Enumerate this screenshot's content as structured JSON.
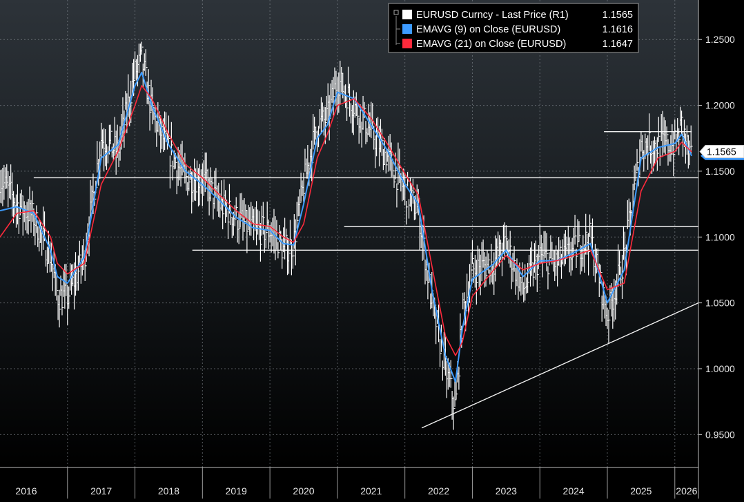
{
  "chart_data": {
    "type": "line",
    "title": "",
    "xlabel": "",
    "ylabel": "",
    "ylim": [
      0.925,
      1.28
    ],
    "xlim": [
      2016.0,
      2026.35
    ],
    "grid": true,
    "y_ticks": [
      0.95,
      1.0,
      1.05,
      1.1,
      1.15,
      1.2,
      1.25
    ],
    "y_tick_labels": [
      "0.9500",
      "1.0000",
      "1.0500",
      "1.1000",
      "1.1500",
      "1.2000",
      "1.2500"
    ],
    "x_year_labels": [
      "2016",
      "2017",
      "2018",
      "2019",
      "2020",
      "2021",
      "2022",
      "2023",
      "2024",
      "2025",
      "2026"
    ],
    "legend": {
      "placement": "top-right",
      "entries": [
        {
          "label": "EURUSD Curncy - Last Price (R1)",
          "value": "1.1565",
          "color": "#ffffff"
        },
        {
          "label": "EMAVG (9)  on Close (EURUSD)",
          "value": "1.1616",
          "color": "#3d9bff"
        },
        {
          "label": "EMAVG (21)  on Close (EURUSD)",
          "value": "1.1647",
          "color": "#ff2a3c"
        }
      ]
    },
    "last_price_tag": "1.1565",
    "series": [
      {
        "name": "EURUSD Curncy - Last Price (R1)",
        "color": "#ffffff",
        "style": "hlc-bars",
        "x": [
          2016.0,
          2016.25,
          2016.5,
          2016.75,
          2016.85,
          2017.0,
          2017.25,
          2017.5,
          2017.75,
          2018.0,
          2018.1,
          2018.25,
          2018.5,
          2018.75,
          2019.0,
          2019.25,
          2019.5,
          2019.75,
          2020.0,
          2020.1,
          2020.2,
          2020.35,
          2020.5,
          2020.7,
          2020.85,
          2021.0,
          2021.25,
          2021.5,
          2021.75,
          2022.0,
          2022.2,
          2022.4,
          2022.6,
          2022.75,
          2022.85,
          2023.0,
          2023.3,
          2023.5,
          2023.75,
          2024.0,
          2024.25,
          2024.5,
          2024.75,
          2025.0,
          2025.25,
          2025.5,
          2025.75,
          2026.0,
          2026.1,
          2026.25
        ],
        "values": [
          1.145,
          1.125,
          1.115,
          1.085,
          1.055,
          1.055,
          1.085,
          1.175,
          1.165,
          1.225,
          1.235,
          1.195,
          1.165,
          1.145,
          1.145,
          1.125,
          1.115,
          1.105,
          1.105,
          1.1,
          1.09,
          1.095,
          1.14,
          1.185,
          1.19,
          1.22,
          1.2,
          1.18,
          1.16,
          1.135,
          1.12,
          1.05,
          1.0,
          0.97,
          1.04,
          1.075,
          1.08,
          1.095,
          1.06,
          1.085,
          1.08,
          1.09,
          1.1,
          1.04,
          1.085,
          1.17,
          1.17,
          1.17,
          1.185,
          1.1565
        ]
      },
      {
        "name": "EMAVG (9)  on Close (EURUSD)",
        "color": "#3d9bff",
        "x": [
          2016.0,
          2016.25,
          2016.5,
          2016.75,
          2016.85,
          2017.0,
          2017.25,
          2017.5,
          2017.75,
          2018.0,
          2018.1,
          2018.25,
          2018.5,
          2018.75,
          2019.0,
          2019.25,
          2019.5,
          2019.75,
          2020.0,
          2020.1,
          2020.2,
          2020.35,
          2020.5,
          2020.7,
          2020.85,
          2021.0,
          2021.25,
          2021.5,
          2021.75,
          2022.0,
          2022.2,
          2022.4,
          2022.6,
          2022.75,
          2022.85,
          2023.0,
          2023.3,
          2023.5,
          2023.75,
          2024.0,
          2024.25,
          2024.5,
          2024.75,
          2025.0,
          2025.25,
          2025.5,
          2025.75,
          2026.0,
          2026.1,
          2026.25
        ],
        "values": [
          1.12,
          1.123,
          1.118,
          1.09,
          1.07,
          1.065,
          1.085,
          1.16,
          1.17,
          1.215,
          1.225,
          1.2,
          1.17,
          1.15,
          1.14,
          1.128,
          1.115,
          1.107,
          1.105,
          1.1,
          1.095,
          1.094,
          1.125,
          1.175,
          1.185,
          1.21,
          1.205,
          1.185,
          1.165,
          1.14,
          1.125,
          1.06,
          1.01,
          0.99,
          1.03,
          1.068,
          1.079,
          1.09,
          1.07,
          1.082,
          1.082,
          1.088,
          1.095,
          1.05,
          1.075,
          1.16,
          1.168,
          1.171,
          1.178,
          1.1616
        ]
      },
      {
        "name": "EMAVG (21)  on Close (EURUSD)",
        "color": "#ff2a3c",
        "x": [
          2016.0,
          2016.25,
          2016.5,
          2016.75,
          2016.85,
          2017.0,
          2017.25,
          2017.5,
          2017.75,
          2018.0,
          2018.1,
          2018.25,
          2018.5,
          2018.75,
          2019.0,
          2019.25,
          2019.5,
          2019.75,
          2020.0,
          2020.1,
          2020.2,
          2020.35,
          2020.5,
          2020.7,
          2020.85,
          2021.0,
          2021.25,
          2021.5,
          2021.75,
          2022.0,
          2022.2,
          2022.4,
          2022.6,
          2022.75,
          2022.85,
          2023.0,
          2023.3,
          2023.5,
          2023.75,
          2024.0,
          2024.25,
          2024.5,
          2024.75,
          2025.0,
          2025.25,
          2025.5,
          2025.75,
          2026.0,
          2026.1,
          2026.25
        ],
        "values": [
          1.1,
          1.118,
          1.12,
          1.1,
          1.08,
          1.072,
          1.08,
          1.14,
          1.165,
          1.2,
          1.215,
          1.205,
          1.178,
          1.155,
          1.145,
          1.132,
          1.12,
          1.11,
          1.108,
          1.104,
          1.1,
          1.096,
          1.11,
          1.16,
          1.178,
          1.2,
          1.205,
          1.19,
          1.17,
          1.148,
          1.132,
          1.078,
          1.025,
          1.01,
          1.02,
          1.055,
          1.074,
          1.086,
          1.075,
          1.08,
          1.082,
          1.086,
          1.09,
          1.06,
          1.065,
          1.135,
          1.16,
          1.165,
          1.172,
          1.1647
        ]
      }
    ],
    "annotations": [
      {
        "type": "hline",
        "y": 1.145,
        "x_from": 2016.5
      },
      {
        "type": "hline",
        "y": 1.09,
        "x_from": 2018.85
      },
      {
        "type": "hline",
        "y": 1.108,
        "x_from": 2021.1
      },
      {
        "type": "hline",
        "y": 1.18,
        "x_from": 2024.95,
        "x_to": 2026.25
      },
      {
        "type": "trendline",
        "x": [
          2022.25,
          2026.35
        ],
        "y": [
          0.955,
          1.05
        ]
      }
    ]
  }
}
